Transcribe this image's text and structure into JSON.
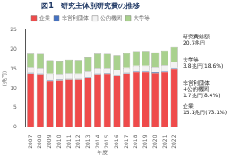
{
  "chart_data": {
    "type": "bar",
    "title": "図1　研究主体別研究費の推移",
    "x_label": "年度",
    "y_label": "(兆円)",
    "categories": [
      "2007",
      "2008",
      "2009",
      "2010",
      "2011",
      "2012",
      "2013",
      "2014",
      "2015",
      "2016",
      "2017",
      "2018",
      "2019",
      "2020",
      "2021",
      "2022"
    ],
    "series": [
      {
        "name": "企業",
        "color": "#ef4b4b",
        "values": [
          13.8,
          13.6,
          11.9,
          12.0,
          12.2,
          12.2,
          12.7,
          13.6,
          13.7,
          13.3,
          13.8,
          14.2,
          14.2,
          13.9,
          14.2,
          15.1
        ]
      },
      {
        "name": "非営利団体",
        "color": "#4472c4",
        "values": [
          0.2,
          0.2,
          0.2,
          0.2,
          0.2,
          0.2,
          0.2,
          0.2,
          0.2,
          0.2,
          0.2,
          0.2,
          0.2,
          0.2,
          0.2,
          0.2
        ]
      },
      {
        "name": "公的機関",
        "color": "#f2f2f2",
        "values": [
          1.4,
          1.4,
          1.6,
          1.4,
          1.4,
          1.3,
          1.4,
          1.4,
          1.3,
          1.3,
          1.3,
          1.4,
          1.4,
          1.4,
          1.5,
          1.5
        ]
      },
      {
        "name": "大学等",
        "color": "#a9d18e",
        "values": [
          3.5,
          3.6,
          3.5,
          3.5,
          3.6,
          3.6,
          3.7,
          3.7,
          3.6,
          3.6,
          3.7,
          3.7,
          3.8,
          3.7,
          3.8,
          3.8
        ]
      }
    ],
    "stacked": true,
    "ylim": [
      0,
      25
    ],
    "yticks": [
      0,
      5,
      10,
      15,
      20,
      25
    ],
    "grid": false,
    "legend": "top",
    "annotations": [
      {
        "lines": [
          "研究費総額",
          "20.7兆円"
        ]
      },
      {
        "lines": [
          "大学等",
          "3.8兆円(18.6%)"
        ]
      },
      {
        "lines": [
          "非営利団体",
          "+公的機関",
          "1.7兆円(8.4%)"
        ]
      },
      {
        "lines": [
          "企業",
          "15.1兆円(73.1%)"
        ]
      }
    ]
  }
}
